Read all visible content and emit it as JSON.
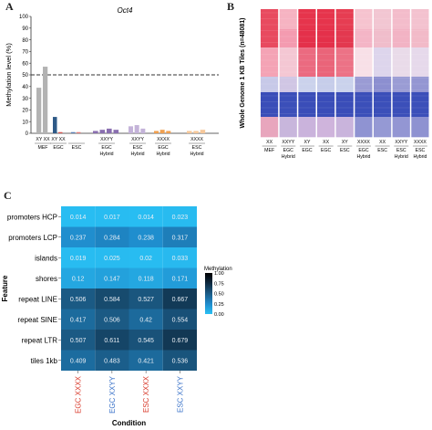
{
  "panels": {
    "a": "A",
    "b": "B",
    "c": "C"
  },
  "chart_data": [
    {
      "type": "bar",
      "title": "Oct4",
      "ylabel": "Methylation level (%)",
      "ylim": [
        0,
        100
      ],
      "yticks": [
        0,
        10,
        20,
        30,
        40,
        50,
        60,
        70,
        80,
        90,
        100
      ],
      "reference_line": 50,
      "bars": [
        {
          "group": 0,
          "label": "XY",
          "value": 39,
          "color": "#b3b3b3"
        },
        {
          "group": 0,
          "label": "XX",
          "value": 57,
          "color": "#b3b3b3"
        },
        {
          "group": 1,
          "label": "XY",
          "value": 14,
          "color": "#2e5a87"
        },
        {
          "group": 1,
          "label": "XX",
          "value": 1,
          "color": "#d9534f"
        },
        {
          "group": 2,
          "label": "XY",
          "value": 1,
          "color": "#5b7fb5"
        },
        {
          "group": 2,
          "label": "XX",
          "value": 1,
          "color": "#e07b7b"
        },
        {
          "group": 3,
          "label": "",
          "value": 2,
          "color": "#8a6fb0"
        },
        {
          "group": 3,
          "label": "",
          "value": 3,
          "color": "#8a6fb0"
        },
        {
          "group": 3,
          "label": "",
          "value": 4,
          "color": "#8a6fb0"
        },
        {
          "group": 3,
          "label": "",
          "value": 3,
          "color": "#8a6fb0"
        },
        {
          "group": 4,
          "label": "",
          "value": 6,
          "color": "#c4b3d9"
        },
        {
          "group": 4,
          "label": "",
          "value": 7,
          "color": "#c4b3d9"
        },
        {
          "group": 4,
          "label": "",
          "value": 4,
          "color": "#c4b3d9"
        },
        {
          "group": 5,
          "label": "",
          "value": 2,
          "color": "#f0a050"
        },
        {
          "group": 5,
          "label": "",
          "value": 3,
          "color": "#f0a050"
        },
        {
          "group": 5,
          "label": "",
          "value": 2,
          "color": "#f0a050"
        },
        {
          "group": 6,
          "label": "",
          "value": 2,
          "color": "#f6c89a"
        },
        {
          "group": 6,
          "label": "",
          "value": 2,
          "color": "#f6c89a"
        },
        {
          "group": 6,
          "label": "",
          "value": 3,
          "color": "#f6c89a"
        }
      ],
      "group_labels": [
        {
          "sub": "XY  XX",
          "name": "MEF"
        },
        {
          "sub": "XY  XX",
          "name": "EGC"
        },
        {
          "sub": "",
          "name": "ESC"
        },
        {
          "sub": "XXYY",
          "name": "EGC\nHybrid"
        },
        {
          "sub": "XXYY",
          "name": "ESC\nHybrid"
        },
        {
          "sub": "XXXX",
          "name": "EGC\nHybrid"
        },
        {
          "sub": "XXXX",
          "name": "ESC\nHybrid"
        }
      ]
    },
    {
      "type": "heatmap",
      "ylabel": "Whole Genome 1 KB Tiles (n=48081)",
      "columns": [
        {
          "sub": "XX",
          "name": "MEF"
        },
        {
          "sub": "XXYY",
          "name": "EGC\nHybrid"
        },
        {
          "sub": "XY",
          "name": "EGC"
        },
        {
          "sub": "XX",
          "name": "EGC"
        },
        {
          "sub": "XY",
          "name": "ESC"
        },
        {
          "sub": "XXXX",
          "name": "EGC\nHybrid"
        },
        {
          "sub": "XX",
          "name": "ESC"
        },
        {
          "sub": "XXYY",
          "name": "ESC\nHybrid"
        },
        {
          "sub": "XXXX",
          "name": "ESC\nHybrid"
        }
      ],
      "bands": [
        [
          "#e84a5f",
          "#f6b3c2",
          "#e6344c",
          "#e6344c",
          "#e63d52",
          "#f6c3cf",
          "#f2c6d2",
          "#f3bccb",
          "#f3c2cf"
        ],
        [
          "#e84a5f",
          "#f49bb0",
          "#e4304a",
          "#e4304a",
          "#e3384f",
          "#f4b5c6",
          "#f0bdcb",
          "#f2b3c4",
          "#f2bac8"
        ],
        [
          "#f4a3b5",
          "#f4c7d3",
          "#eb6a80",
          "#ea6479",
          "#ec7286",
          "#f8e0e7",
          "#ddd5ec",
          "#e9dbe9",
          "#e6d9eb"
        ],
        [
          "#c7c9e8",
          "#d0c6e4",
          "#cbd2ec",
          "#c6cdea",
          "#cad2ec",
          "#9a9bd4",
          "#8c8fd0",
          "#9a9cd4",
          "#9496d2"
        ],
        [
          "#3a4db8",
          "#3b4fb9",
          "#3a4db8",
          "#3a4db8",
          "#3a4db8",
          "#3b4fb9",
          "#3b4fb9",
          "#3b4fb9",
          "#3b4fb9"
        ],
        [
          "#e8a6bd",
          "#c8b6dc",
          "#cab3dc",
          "#cfb4dc",
          "#c9b4dc",
          "#8f93d2",
          "#9599d4",
          "#9396d3",
          "#8e92d1"
        ]
      ]
    },
    {
      "type": "heatmap",
      "xlabel": "Condition",
      "ylabel": "Feature",
      "columns": [
        {
          "name": "EGC XXXX",
          "color": "#d93a2b"
        },
        {
          "name": "EGC XXYY",
          "color": "#3b73c9"
        },
        {
          "name": "ESC XXXX",
          "color": "#d93a2b"
        },
        {
          "name": "ESC XXYY",
          "color": "#3b73c9"
        }
      ],
      "rows": [
        "promoters HCP",
        "promoters LCP",
        "islands",
        "shores",
        "repeat LINE",
        "repeat SINE",
        "repeat LTR",
        "tiles 1kb"
      ],
      "values": [
        [
          "0.014",
          "0.017",
          "0.014",
          "0.023"
        ],
        [
          "0.237",
          "0.284",
          "0.238",
          "0.317"
        ],
        [
          "0.019",
          "0.025",
          "0.02",
          "0.033"
        ],
        [
          "0.12",
          "0.147",
          "0.118",
          "0.171"
        ],
        [
          "0.506",
          "0.584",
          "0.527",
          "0.667"
        ],
        [
          "0.417",
          "0.506",
          "0.42",
          "0.554"
        ],
        [
          "0.507",
          "0.611",
          "0.545",
          "0.679"
        ],
        [
          "0.409",
          "0.483",
          "0.421",
          "0.536"
        ]
      ],
      "legend": {
        "title": "Methylation",
        "ticks": [
          "1.00",
          "0.75",
          "0.50",
          "0.25",
          "0.00"
        ],
        "colors": [
          "#000000",
          "#0e2a40",
          "#1b5b86",
          "#1f8bcc",
          "#29c0f4"
        ]
      }
    }
  ]
}
